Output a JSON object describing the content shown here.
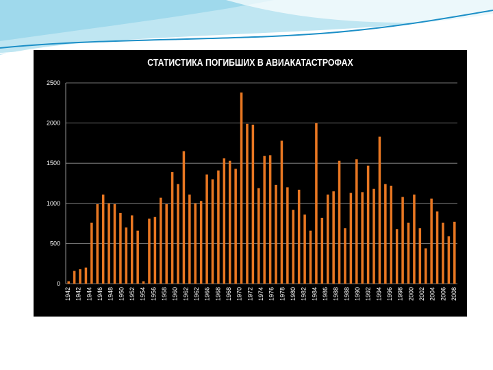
{
  "slide": {
    "background": "#ffffff",
    "accent_colors": [
      "#1c8fc7",
      "#7fcde8",
      "#bfe6f2"
    ]
  },
  "chart_data": {
    "type": "bar",
    "title": "СТАТИСТИКА ПОГИБШИХ В АВИАКАТАСТРОФАХ",
    "xlabel": "",
    "ylabel": "",
    "ylim": [
      0,
      2500
    ],
    "y_ticks": [
      0,
      500,
      1000,
      1500,
      2000,
      2500
    ],
    "grid": true,
    "legend": "none",
    "bar_color": "#e87722",
    "background_color": "#000000",
    "x_tick_labels": [
      "1942",
      "1942",
      "1944",
      "1946",
      "1948",
      "1950",
      "1952",
      "1954",
      "1956",
      "1958",
      "1960",
      "1962",
      "1962",
      "1966",
      "1968",
      "1968",
      "1970",
      "1972",
      "1974",
      "1976",
      "1978",
      "1980",
      "1982",
      "1984",
      "1986",
      "1988",
      "1988",
      "1990",
      "1992",
      "1994",
      "1996",
      "1998",
      "2000",
      "2002",
      "2004",
      "2006",
      "2008"
    ],
    "x": [
      1942,
      1943,
      1944,
      1945,
      1946,
      1947,
      1948,
      1949,
      1950,
      1951,
      1952,
      1953,
      1954,
      1955,
      1956,
      1957,
      1958,
      1959,
      1960,
      1961,
      1962,
      1963,
      1964,
      1965,
      1966,
      1967,
      1968,
      1969,
      1970,
      1971,
      1972,
      1973,
      1974,
      1975,
      1976,
      1977,
      1978,
      1979,
      1980,
      1981,
      1982,
      1983,
      1984,
      1985,
      1986,
      1987,
      1988,
      1989,
      1990,
      1991,
      1992,
      1993,
      1994,
      1995,
      1996,
      1997,
      1998,
      1999,
      2000,
      2001,
      2002,
      2003,
      2004,
      2005,
      2006,
      2007,
      2008,
      2009
    ],
    "values": [
      30,
      160,
      180,
      200,
      760,
      990,
      1110,
      1000,
      990,
      880,
      700,
      850,
      660,
      30,
      810,
      830,
      1070,
      990,
      1390,
      1240,
      1650,
      1110,
      1000,
      1030,
      1360,
      1300,
      1410,
      1560,
      1530,
      1430,
      2380,
      1990,
      1980,
      1190,
      1590,
      1600,
      1230,
      1780,
      1200,
      920,
      1170,
      860,
      660,
      2000,
      820,
      1110,
      1150,
      1530,
      690,
      1130,
      1550,
      1140,
      1470,
      1180,
      1830,
      1240,
      1220,
      680,
      1080,
      760,
      1110,
      690,
      440,
      1060,
      900,
      760,
      590,
      770
    ]
  }
}
